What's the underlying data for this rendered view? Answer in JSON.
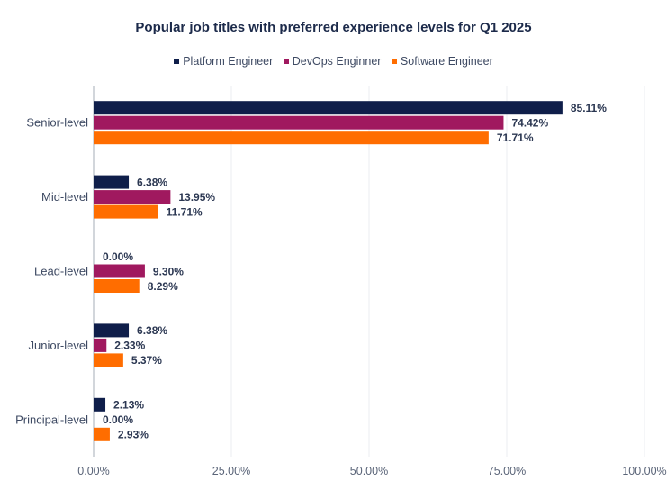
{
  "chart_data": {
    "type": "bar",
    "orientation": "horizontal",
    "title": "Popular job titles with preferred experience levels for Q1 2025",
    "xlabel": "",
    "ylabel": "",
    "xlim": [
      0,
      100
    ],
    "grid": true,
    "legend_position": "top-center",
    "categories": [
      "Senior-level",
      "Mid-level",
      "Lead-level",
      "Junior-level",
      "Principal-level"
    ],
    "x_ticks": [
      "0.00%",
      "25.00%",
      "50.00%",
      "75.00%",
      "100.00%"
    ],
    "x_tick_values": [
      0,
      25,
      50,
      75,
      100
    ],
    "series": [
      {
        "name": "Platform Engineer",
        "color": "#0f1e4a",
        "values": [
          85.11,
          6.38,
          0.0,
          6.38,
          2.13
        ],
        "labels": [
          "85.11%",
          "6.38%",
          "0.00%",
          "6.38%",
          "2.13%"
        ]
      },
      {
        "name": "DevOps Enginner",
        "color": "#a0195f",
        "values": [
          74.42,
          13.95,
          9.3,
          2.33,
          0.0
        ],
        "labels": [
          "74.42%",
          "13.95%",
          "9.30%",
          "2.33%",
          "0.00%"
        ]
      },
      {
        "name": "Software Engineer",
        "color": "#ff6d00",
        "values": [
          71.71,
          11.71,
          8.29,
          5.37,
          2.93
        ],
        "labels": [
          "71.71%",
          "11.71%",
          "8.29%",
          "5.37%",
          "2.93%"
        ]
      }
    ]
  }
}
